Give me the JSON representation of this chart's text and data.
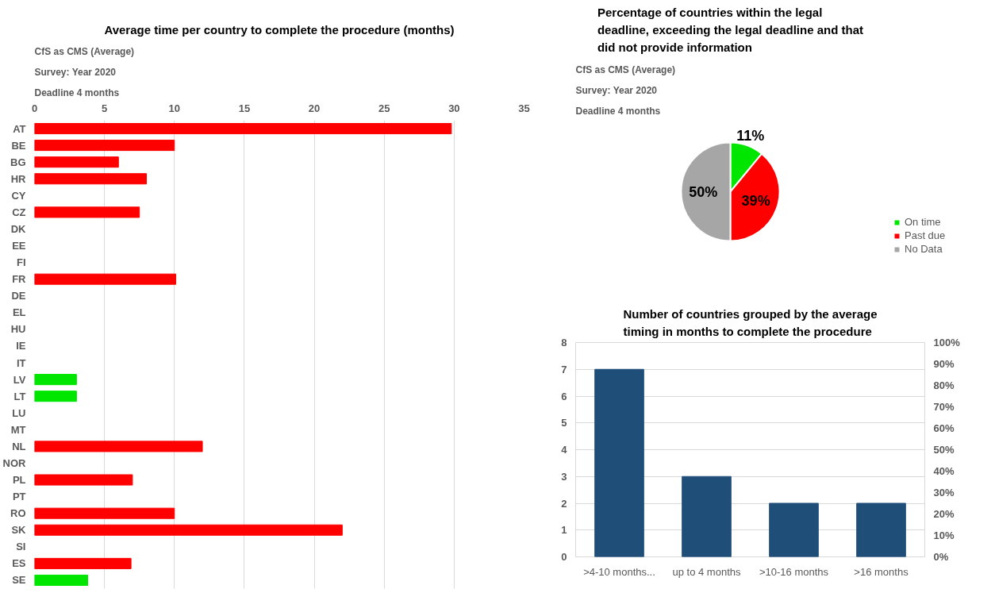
{
  "chart_data": [
    {
      "type": "bar",
      "orientation": "horizontal",
      "title": "Average time per country to complete the procedure (months)",
      "annotations": [
        "CfS as CMS  (Average)",
        "Survey: Year 2020",
        "Deadline 4 months"
      ],
      "categories": [
        "AT",
        "BE",
        "BG",
        "HR",
        "CY",
        "CZ",
        "DK",
        "EE",
        "FI",
        "FR",
        "DE",
        "EL",
        "HU",
        "IE",
        "IT",
        "LV",
        "LT",
        "LU",
        "MT",
        "NL",
        "NOR",
        "PL",
        "PT",
        "RO",
        "SK",
        "SI",
        "ES",
        "SE"
      ],
      "values": [
        29.8,
        10,
        6,
        8,
        null,
        7.5,
        null,
        null,
        null,
        10.1,
        null,
        null,
        null,
        null,
        null,
        3,
        3,
        null,
        null,
        12,
        null,
        7,
        null,
        10,
        22,
        null,
        6.9,
        3.8
      ],
      "colors": [
        "#ff0000",
        "#ff0000",
        "#ff0000",
        "#ff0000",
        "#ff0000",
        "#ff0000",
        "#ff0000",
        "#ff0000",
        "#ff0000",
        "#ff0000",
        "#ff0000",
        "#ff0000",
        "#ff0000",
        "#ff0000",
        "#ff0000",
        "#00e600",
        "#00e600",
        "#ff0000",
        "#ff0000",
        "#ff0000",
        "#ff0000",
        "#ff0000",
        "#ff0000",
        "#ff0000",
        "#ff0000",
        "#ff0000",
        "#ff0000",
        "#00e600"
      ],
      "xlim": [
        0,
        35
      ],
      "xticks": [
        0,
        5,
        10,
        15,
        20,
        25,
        30,
        35
      ],
      "grid": "x"
    },
    {
      "type": "pie",
      "title": "Percentage of countries within the legal deadline, exceeding the legal deadline and that did not provide information",
      "annotations": [
        "CfS as CMS  (Average)",
        "Survey: Year 2020",
        "Deadline 4 months"
      ],
      "categories": [
        "On time",
        "Past due",
        "No Data"
      ],
      "values": [
        11,
        39,
        50
      ],
      "colors": [
        "#00e600",
        "#ff0000",
        "#a6a6a6"
      ],
      "value_labels": [
        "11%",
        "39%",
        "50%"
      ],
      "legend": "right"
    },
    {
      "type": "bar",
      "title": "Number of countries grouped by the average timing in months to complete the procedure",
      "categories": [
        ">4-10 months...",
        "up to 4 months",
        ">10-16 months",
        ">16 months"
      ],
      "values": [
        7,
        3,
        2,
        2
      ],
      "color": "#1f4e79",
      "ylim": [
        0,
        8
      ],
      "yticks": [
        0,
        1,
        2,
        3,
        4,
        5,
        6,
        7,
        8
      ],
      "y2lim": [
        0,
        100
      ],
      "y2ticks": [
        {
          "value": 0,
          "label": "0%"
        },
        {
          "value": 10,
          "label": "10%"
        },
        {
          "value": 20,
          "label": "20%"
        },
        {
          "value": 30,
          "label": "30%"
        },
        {
          "value": 40,
          "label": "40%"
        },
        {
          "value": 50,
          "label": "50%"
        },
        {
          "value": 60,
          "label": "60%"
        },
        {
          "value": 70,
          "label": "70%"
        },
        {
          "value": 80,
          "label": "80%"
        },
        {
          "value": 90,
          "label": "90%"
        },
        {
          "value": 100,
          "label": "100%"
        }
      ],
      "grid": "y"
    }
  ]
}
